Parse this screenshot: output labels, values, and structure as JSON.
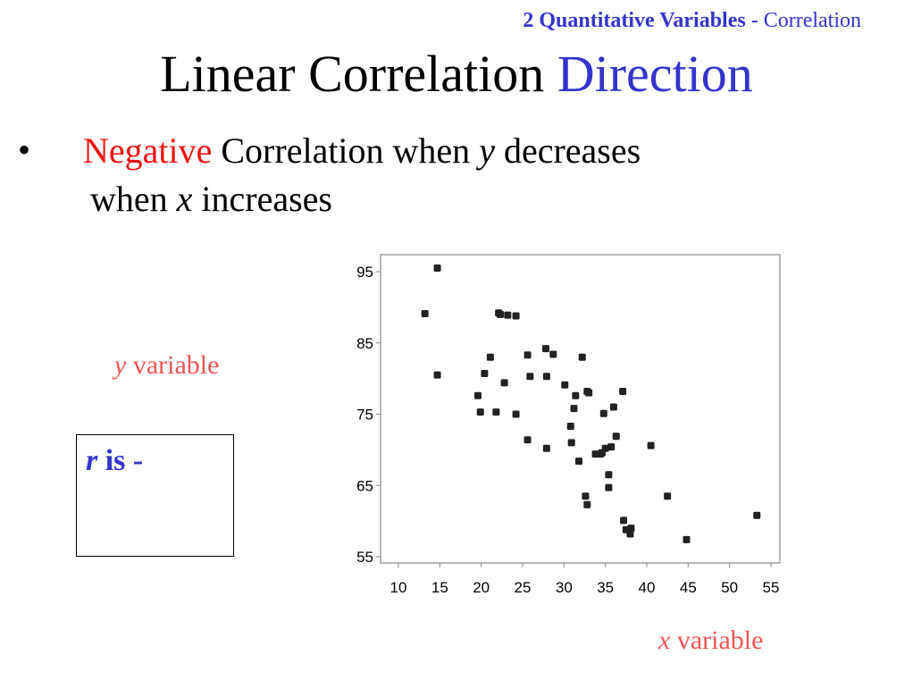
{
  "header": {
    "tag_strong": "2 Quantitative Variables",
    "tag_rest": " - Correlation"
  },
  "title": {
    "main": "Linear Correlation ",
    "accent": "Direction"
  },
  "bullet": {
    "marker": "•",
    "negative": "Negative",
    "text1": " Correlation when ",
    "y": "y",
    "text2": " decreases",
    "line2_pre": "when ",
    "x": "x",
    "line2_post": " increases"
  },
  "labels": {
    "y_var": "y",
    "y_rest": " variable",
    "x_var": "x",
    "x_rest": " variable"
  },
  "rbox": {
    "r": "r",
    "rest": " is -"
  },
  "colors": {
    "accent_blue": "#3333cc",
    "negative_red": "#ee1111",
    "label_salmon": "#ee5555",
    "point": "#222222"
  },
  "chart_data": {
    "type": "scatter",
    "xlim": [
      10,
      55
    ],
    "ylim": [
      55,
      97
    ],
    "xticks": [
      10,
      15,
      20,
      25,
      30,
      35,
      40,
      45,
      50,
      55
    ],
    "yticks": [
      55,
      65,
      75,
      85,
      95
    ],
    "grid": false,
    "points": [
      [
        13.2,
        89.1
      ],
      [
        14.7,
        95.5
      ],
      [
        14.7,
        80.5
      ],
      [
        19.6,
        77.6
      ],
      [
        19.9,
        75.3
      ],
      [
        20.4,
        80.7
      ],
      [
        21.1,
        83.0
      ],
      [
        21.8,
        75.3
      ],
      [
        22.1,
        89.2
      ],
      [
        22.3,
        89.0
      ],
      [
        22.8,
        79.4
      ],
      [
        23.2,
        88.9
      ],
      [
        24.2,
        88.8
      ],
      [
        24.2,
        75.0
      ],
      [
        25.6,
        83.3
      ],
      [
        25.6,
        71.4
      ],
      [
        25.9,
        80.3
      ],
      [
        27.8,
        84.2
      ],
      [
        27.9,
        80.3
      ],
      [
        27.9,
        70.2
      ],
      [
        28.7,
        83.4
      ],
      [
        30.1,
        79.1
      ],
      [
        30.8,
        73.3
      ],
      [
        30.9,
        71.0
      ],
      [
        31.2,
        75.8
      ],
      [
        31.4,
        77.6
      ],
      [
        31.8,
        68.4
      ],
      [
        32.2,
        83.0
      ],
      [
        32.6,
        63.5
      ],
      [
        32.8,
        62.3
      ],
      [
        32.8,
        78.2
      ],
      [
        33.0,
        78.0
      ],
      [
        33.8,
        69.4
      ],
      [
        34.4,
        69.4
      ],
      [
        34.6,
        69.6
      ],
      [
        34.8,
        75.1
      ],
      [
        35.0,
        70.2
      ],
      [
        35.4,
        66.5
      ],
      [
        35.4,
        64.7
      ],
      [
        35.7,
        70.4
      ],
      [
        36.0,
        76.0
      ],
      [
        36.3,
        71.9
      ],
      [
        37.1,
        78.2
      ],
      [
        37.2,
        60.1
      ],
      [
        37.5,
        58.8
      ],
      [
        38.0,
        58.2
      ],
      [
        38.1,
        59.0
      ],
      [
        40.5,
        70.6
      ],
      [
        42.5,
        63.5
      ],
      [
        44.8,
        57.4
      ],
      [
        53.3,
        60.8
      ]
    ]
  }
}
